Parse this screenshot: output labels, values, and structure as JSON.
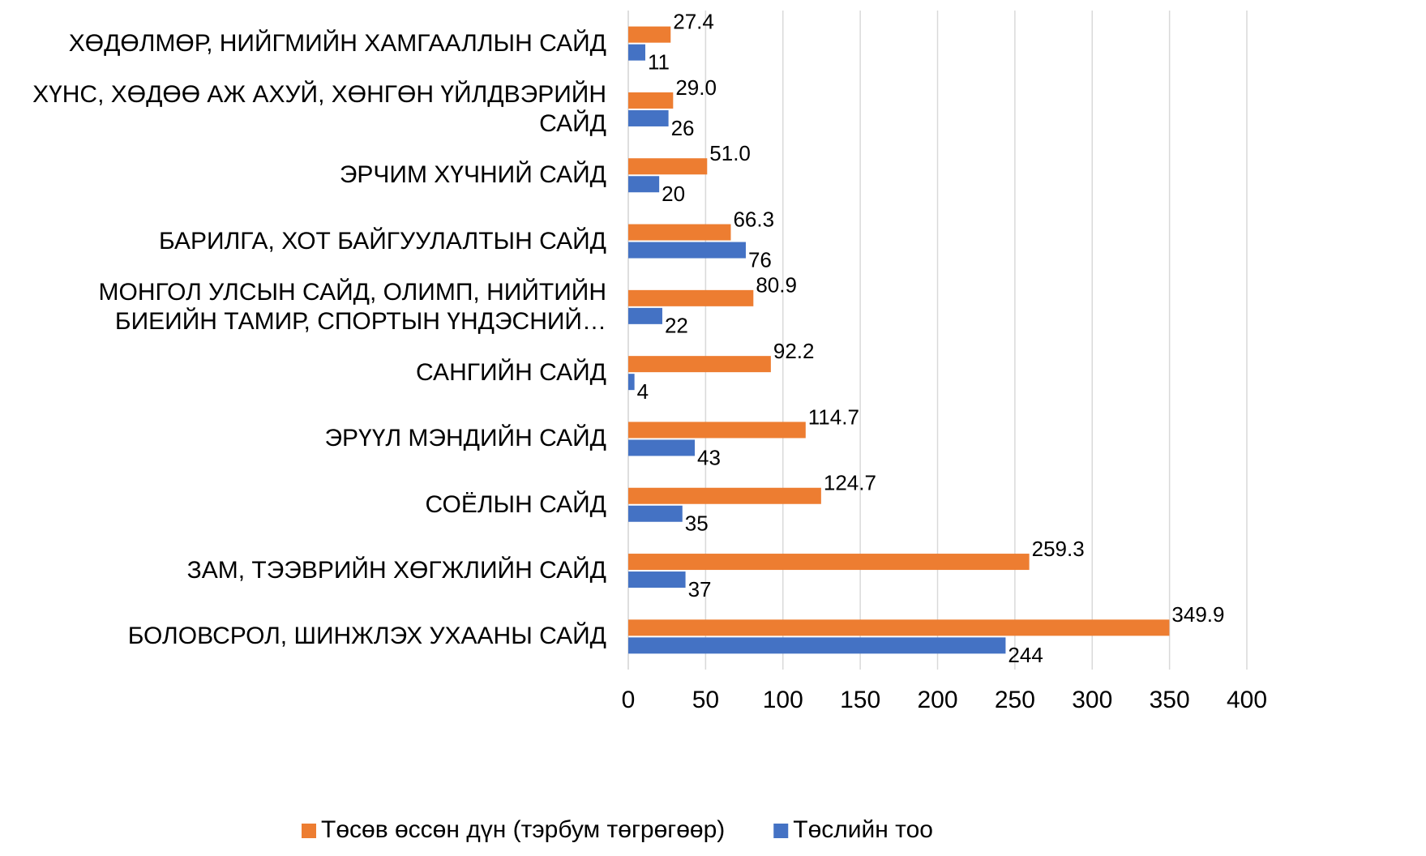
{
  "chart_data": {
    "type": "bar",
    "orientation": "horizontal",
    "categories": [
      "ХӨДӨЛМӨР, НИЙГМИЙН ХАМГААЛЛЫН САЙД",
      "ХҮНС, ХӨДӨӨ АЖ АХУЙ, ХӨНГӨН ҮЙЛДВЭРИЙН САЙД",
      "ЭРЧИМ ХҮЧНИЙ САЙД",
      "БАРИЛГА, ХОТ БАЙГУУЛАЛТЫН САЙД",
      "МОНГОЛ УЛСЫН САЙД, ОЛИМП, НИЙТИЙН БИЕИЙН ТАМИР, СПОРТЫН ҮНДЭСНИЙ…",
      "САНГИЙН САЙД",
      "ЭРҮҮЛ МЭНДИЙН САЙД",
      "СОЁЛЫН САЙД",
      "ЗАМ, ТЭЭВРИЙН ХӨГЖЛИЙН САЙД",
      "БОЛОВСРОЛ, ШИНЖЛЭХ УХААНЫ САЙД"
    ],
    "series": [
      {
        "name": "Төсөв өссөн дүн (тэрбум төгрөгөөр)",
        "color": "#ed7d31",
        "values": [
          27.4,
          29.0,
          51.0,
          66.3,
          80.9,
          92.2,
          114.7,
          124.7,
          259.3,
          349.9
        ],
        "value_labels": [
          "27.4",
          "29.0",
          "51.0",
          "66.3",
          "80.9",
          "92.2",
          "114.7",
          "124.7",
          "259.3",
          "349.9"
        ]
      },
      {
        "name": "Төслийн тоо",
        "color": "#4472c4",
        "values": [
          11,
          26,
          20,
          76,
          22,
          4,
          43,
          35,
          37,
          244
        ]
      }
    ],
    "xlim": [
      0,
      400
    ],
    "xticks": [
      0,
      50,
      100,
      150,
      200,
      250,
      300,
      350,
      400
    ],
    "grid": true,
    "legend": "bottom"
  }
}
